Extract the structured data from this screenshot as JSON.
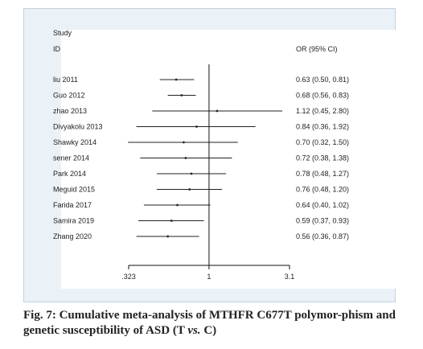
{
  "chart_data": {
    "type": "forest",
    "header": {
      "study_label_1": "Study",
      "study_label_2": "ID",
      "effect_label": "OR (95% CI)"
    },
    "x_scale": "log",
    "x_ticks": [
      {
        "value": 0.323,
        "label": ".323"
      },
      {
        "value": 1,
        "label": "1"
      },
      {
        "value": 3.1,
        "label": "3.1"
      }
    ],
    "xlim": [
      0.323,
      3.1
    ],
    "null_line": 1,
    "studies": [
      {
        "name": "liu 2011",
        "or": 0.63,
        "lo": 0.5,
        "hi": 0.81,
        "ci_text": "0.63 (0.50, 0.81)"
      },
      {
        "name": "Guo 2012",
        "or": 0.68,
        "lo": 0.56,
        "hi": 0.83,
        "ci_text": "0.68 (0.56, 0.83)"
      },
      {
        "name": "zhao 2013",
        "or": 1.12,
        "lo": 0.45,
        "hi": 2.8,
        "ci_text": "1.12 (0.45, 2.80)"
      },
      {
        "name": "Divyakolu 2013",
        "or": 0.84,
        "lo": 0.36,
        "hi": 1.92,
        "ci_text": "0.84 (0.36, 1.92)"
      },
      {
        "name": "Shawky 2014",
        "or": 0.7,
        "lo": 0.32,
        "hi": 1.5,
        "ci_text": "0.70 (0.32, 1.50)"
      },
      {
        "name": "sener 2014",
        "or": 0.72,
        "lo": 0.38,
        "hi": 1.38,
        "ci_text": "0.72 (0.38, 1.38)"
      },
      {
        "name": "Park 2014",
        "or": 0.78,
        "lo": 0.48,
        "hi": 1.27,
        "ci_text": "0.78 (0.48, 1.27)"
      },
      {
        "name": "Meguid 2015",
        "or": 0.76,
        "lo": 0.48,
        "hi": 1.2,
        "ci_text": "0.76 (0.48, 1.20)"
      },
      {
        "name": "Farida 2017",
        "or": 0.64,
        "lo": 0.4,
        "hi": 1.02,
        "ci_text": "0.64 (0.40, 1.02)"
      },
      {
        "name": "Samira 2019",
        "or": 0.59,
        "lo": 0.37,
        "hi": 0.93,
        "ci_text": "0.59 (0.37, 0.93)"
      },
      {
        "name": "Zhang 2020",
        "or": 0.56,
        "lo": 0.36,
        "hi": 0.87,
        "ci_text": "0.56 (0.36, 0.87)"
      }
    ]
  },
  "caption": {
    "part1": "Fig. 7: Cumulative meta-analysis of MTHFR C677T polymor-phism and genetic susceptibility of ASD (T ",
    "vs": "vs.",
    "part2": " C)"
  }
}
